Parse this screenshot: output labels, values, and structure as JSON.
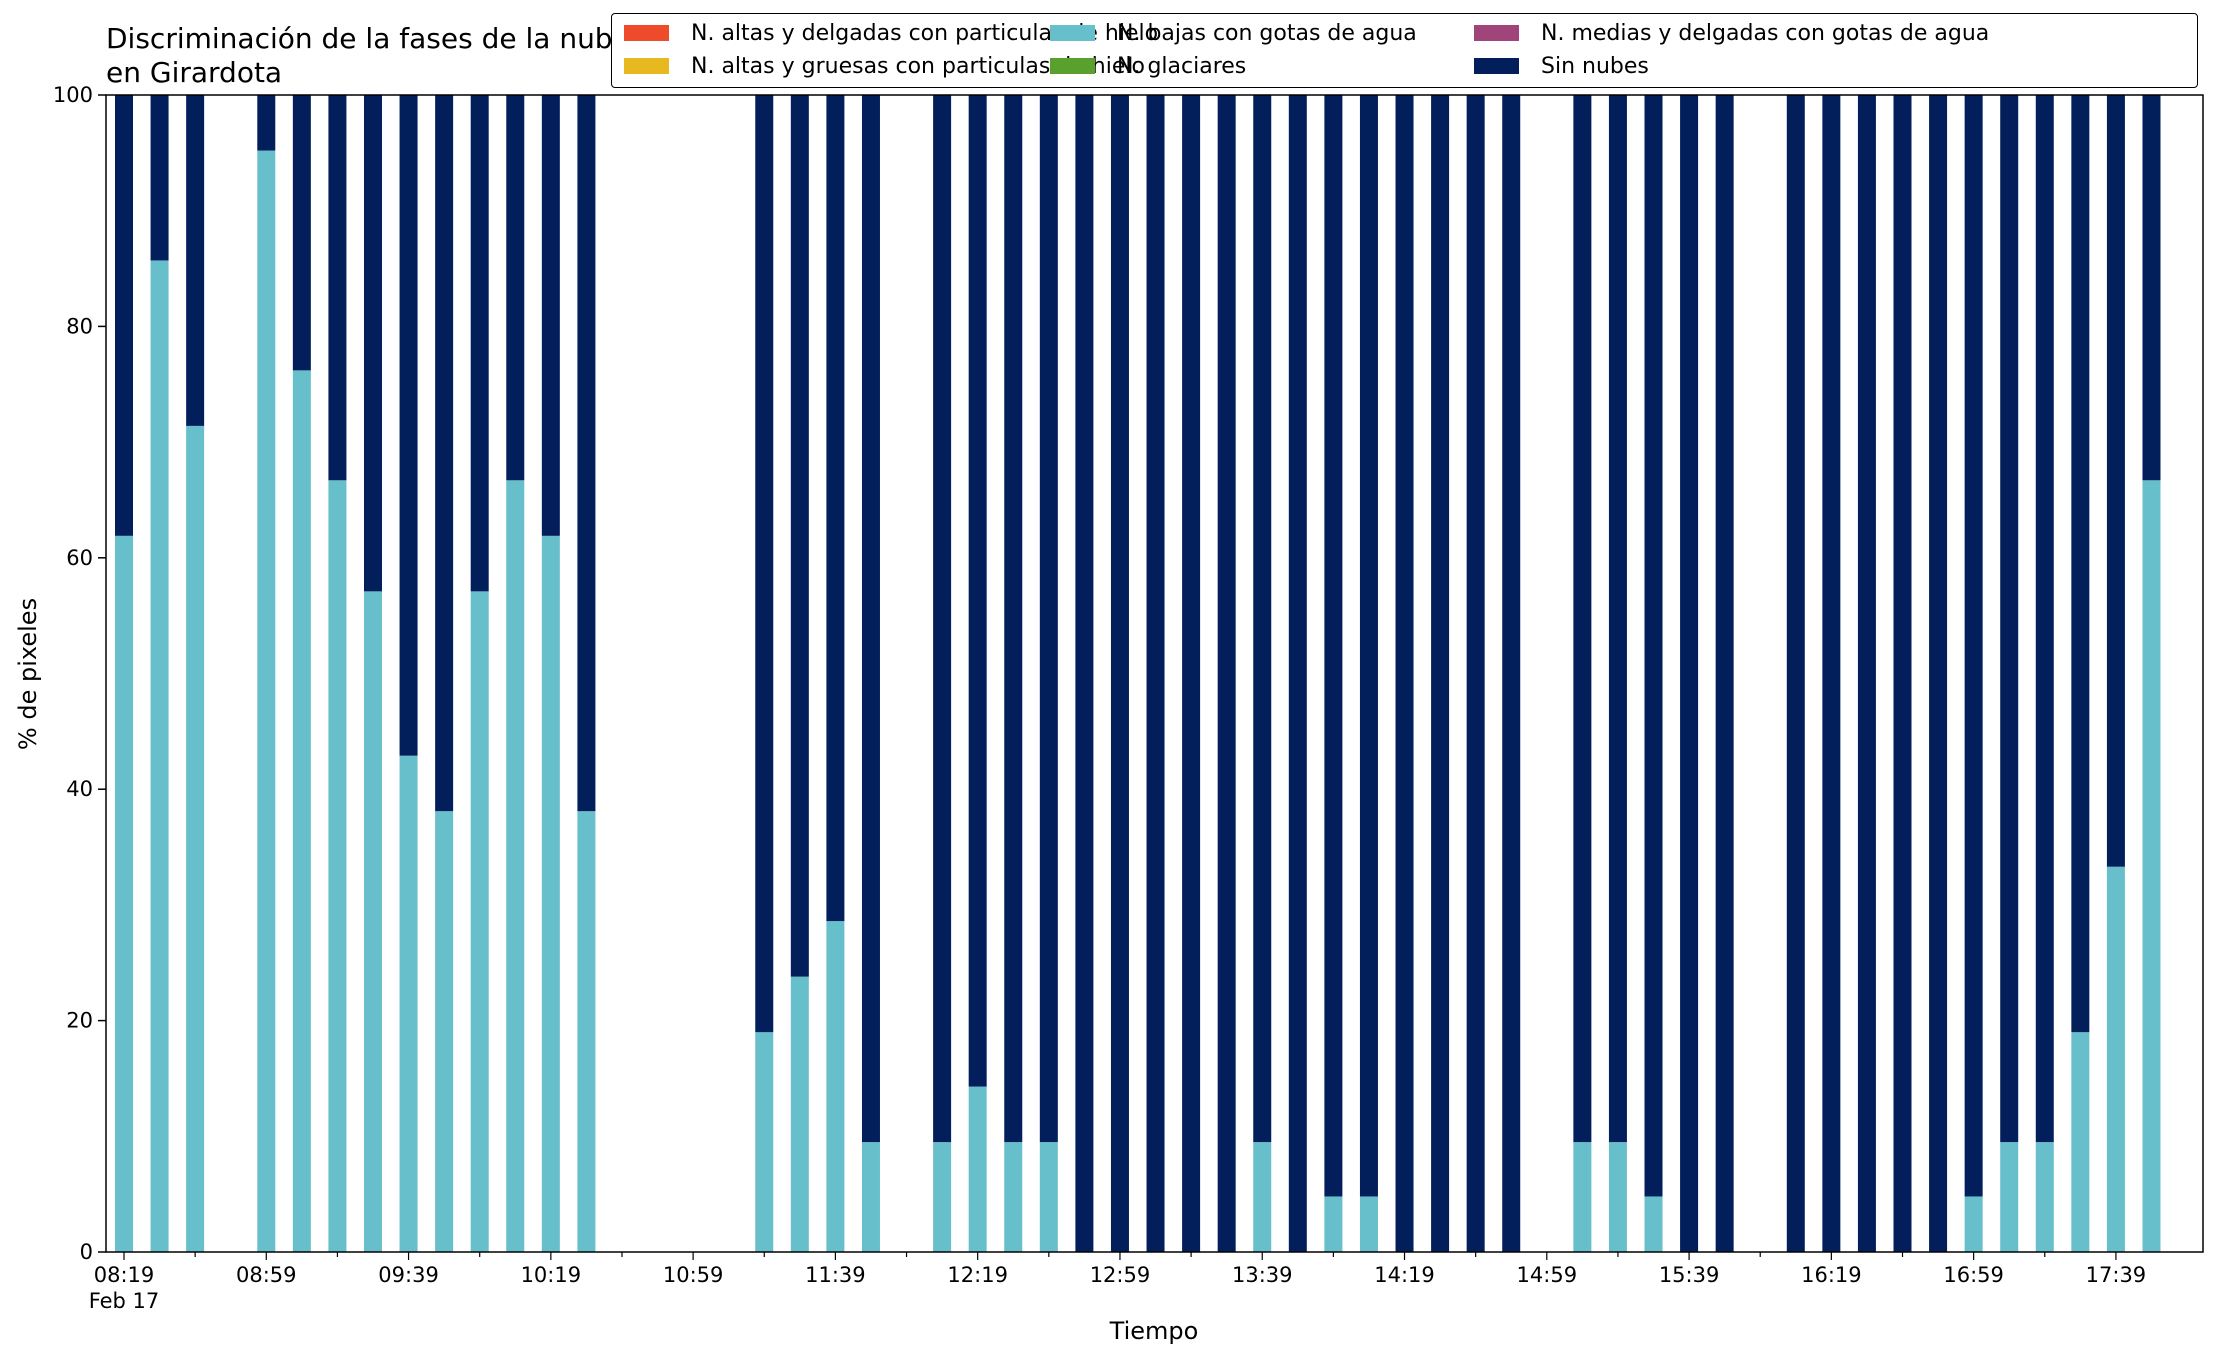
{
  "chart_data": {
    "type": "bar",
    "stacked": true,
    "title": "Discriminación de la fases de la nube en Girardota",
    "xlabel": "Tiempo",
    "ylabel": "% de pixeles",
    "ylim": [
      0,
      100
    ],
    "yticks": [
      0,
      20,
      40,
      60,
      80,
      100
    ],
    "xtick_labels": [
      "08:19",
      "08:59",
      "09:39",
      "10:19",
      "10:59",
      "11:39",
      "12:19",
      "12:59",
      "13:39",
      "14:19",
      "14:59",
      "15:39",
      "16:19",
      "16:59",
      "17:39"
    ],
    "date_label": "Feb 17",
    "legend_position": "top-right",
    "grid": false,
    "categories": [
      "08:19",
      "08:29",
      "08:39",
      "08:49",
      "08:59",
      "09:09",
      "09:19",
      "09:29",
      "09:39",
      "09:49",
      "09:59",
      "10:09",
      "10:19",
      "10:29",
      "10:39",
      "10:49",
      "10:59",
      "11:09",
      "11:19",
      "11:29",
      "11:39",
      "11:49",
      "11:59",
      "12:09",
      "12:19",
      "12:29",
      "12:39",
      "12:49",
      "12:59",
      "13:09",
      "13:19",
      "13:29",
      "13:39",
      "13:49",
      "13:59",
      "14:09",
      "14:19",
      "14:29",
      "14:39",
      "14:49",
      "14:59",
      "15:09",
      "15:19",
      "15:29",
      "15:39",
      "15:49",
      "15:59",
      "16:09",
      "16:19",
      "16:29",
      "16:39",
      "16:49",
      "16:59",
      "17:09",
      "17:19",
      "17:29",
      "17:39",
      "17:49"
    ],
    "series": [
      {
        "name": "N. altas y delgadas con particulas de hielo",
        "color": "#ee4b2b",
        "values": [
          0,
          0,
          0,
          null,
          0,
          0,
          0,
          0,
          0,
          0,
          0,
          0,
          0,
          0,
          null,
          null,
          null,
          null,
          0,
          0,
          0,
          0,
          null,
          0,
          0,
          0,
          0,
          0,
          0,
          0,
          0,
          0,
          0,
          0,
          0,
          0,
          0,
          0,
          0,
          0,
          null,
          0,
          0,
          0,
          0,
          0,
          null,
          0,
          0,
          0,
          0,
          0,
          0,
          0,
          0,
          0,
          0,
          0
        ]
      },
      {
        "name": "N. altas y gruesas con particulas de hielo",
        "color": "#e8b820",
        "values": [
          0,
          0,
          0,
          null,
          0,
          0,
          0,
          0,
          0,
          0,
          0,
          0,
          0,
          0,
          null,
          null,
          null,
          null,
          0,
          0,
          0,
          0,
          null,
          0,
          0,
          0,
          0,
          0,
          0,
          0,
          0,
          0,
          0,
          0,
          0,
          0,
          0,
          0,
          0,
          0,
          null,
          0,
          0,
          0,
          0,
          0,
          null,
          0,
          0,
          0,
          0,
          0,
          0,
          0,
          0,
          0,
          0,
          0
        ]
      },
      {
        "name": "N. bajas con gotas de agua",
        "color": "#67bfcb",
        "values": [
          61.9,
          85.7,
          71.4,
          null,
          95.2,
          76.2,
          66.7,
          57.1,
          42.9,
          38.1,
          57.1,
          66.7,
          61.9,
          38.1,
          null,
          null,
          null,
          null,
          19.0,
          23.8,
          28.6,
          9.5,
          null,
          9.5,
          14.3,
          9.5,
          9.5,
          0,
          0,
          0,
          0,
          0,
          9.5,
          0,
          4.8,
          4.8,
          0,
          0,
          0,
          0,
          null,
          9.5,
          9.5,
          4.8,
          0,
          0,
          null,
          0,
          0,
          0,
          0,
          0,
          4.8,
          9.5,
          9.5,
          19.0,
          33.3,
          66.7
        ]
      },
      {
        "name": "N. glaciares",
        "color": "#5aa02c",
        "values": [
          0,
          0,
          0,
          null,
          0,
          0,
          0,
          0,
          0,
          0,
          0,
          0,
          0,
          0,
          null,
          null,
          null,
          null,
          0,
          0,
          0,
          0,
          null,
          0,
          0,
          0,
          0,
          0,
          0,
          0,
          0,
          0,
          0,
          0,
          0,
          0,
          0,
          0,
          0,
          0,
          null,
          0,
          0,
          0,
          0,
          0,
          null,
          0,
          0,
          0,
          0,
          0,
          0,
          0,
          0,
          0,
          0,
          0
        ]
      },
      {
        "name": "N. medias y delgadas con gotas de agua",
        "color": "#a0457a",
        "values": [
          0,
          0,
          0,
          null,
          0,
          0,
          0,
          0,
          0,
          0,
          0,
          0,
          0,
          0,
          null,
          null,
          null,
          null,
          0,
          0,
          0,
          0,
          null,
          0,
          0,
          0,
          0,
          0,
          0,
          0,
          0,
          0,
          0,
          0,
          0,
          0,
          0,
          0,
          0,
          0,
          null,
          0,
          0,
          0,
          0,
          0,
          null,
          0,
          0,
          0,
          0,
          0,
          0,
          0,
          0,
          0,
          0,
          0
        ]
      },
      {
        "name": "Sin nubes",
        "color": "#021f5c",
        "values": [
          38.1,
          14.3,
          28.6,
          null,
          4.8,
          23.8,
          33.3,
          42.9,
          57.1,
          61.9,
          42.9,
          33.3,
          38.1,
          61.9,
          null,
          null,
          null,
          null,
          81.0,
          76.2,
          71.4,
          90.5,
          null,
          90.5,
          85.7,
          90.5,
          90.5,
          100,
          100,
          100,
          100,
          100,
          90.5,
          100,
          95.2,
          95.2,
          100,
          100,
          100,
          100,
          null,
          90.5,
          90.5,
          95.2,
          100,
          100,
          null,
          100,
          100,
          100,
          100,
          100,
          95.2,
          90.5,
          90.5,
          81.0,
          66.7,
          33.3
        ]
      }
    ]
  }
}
